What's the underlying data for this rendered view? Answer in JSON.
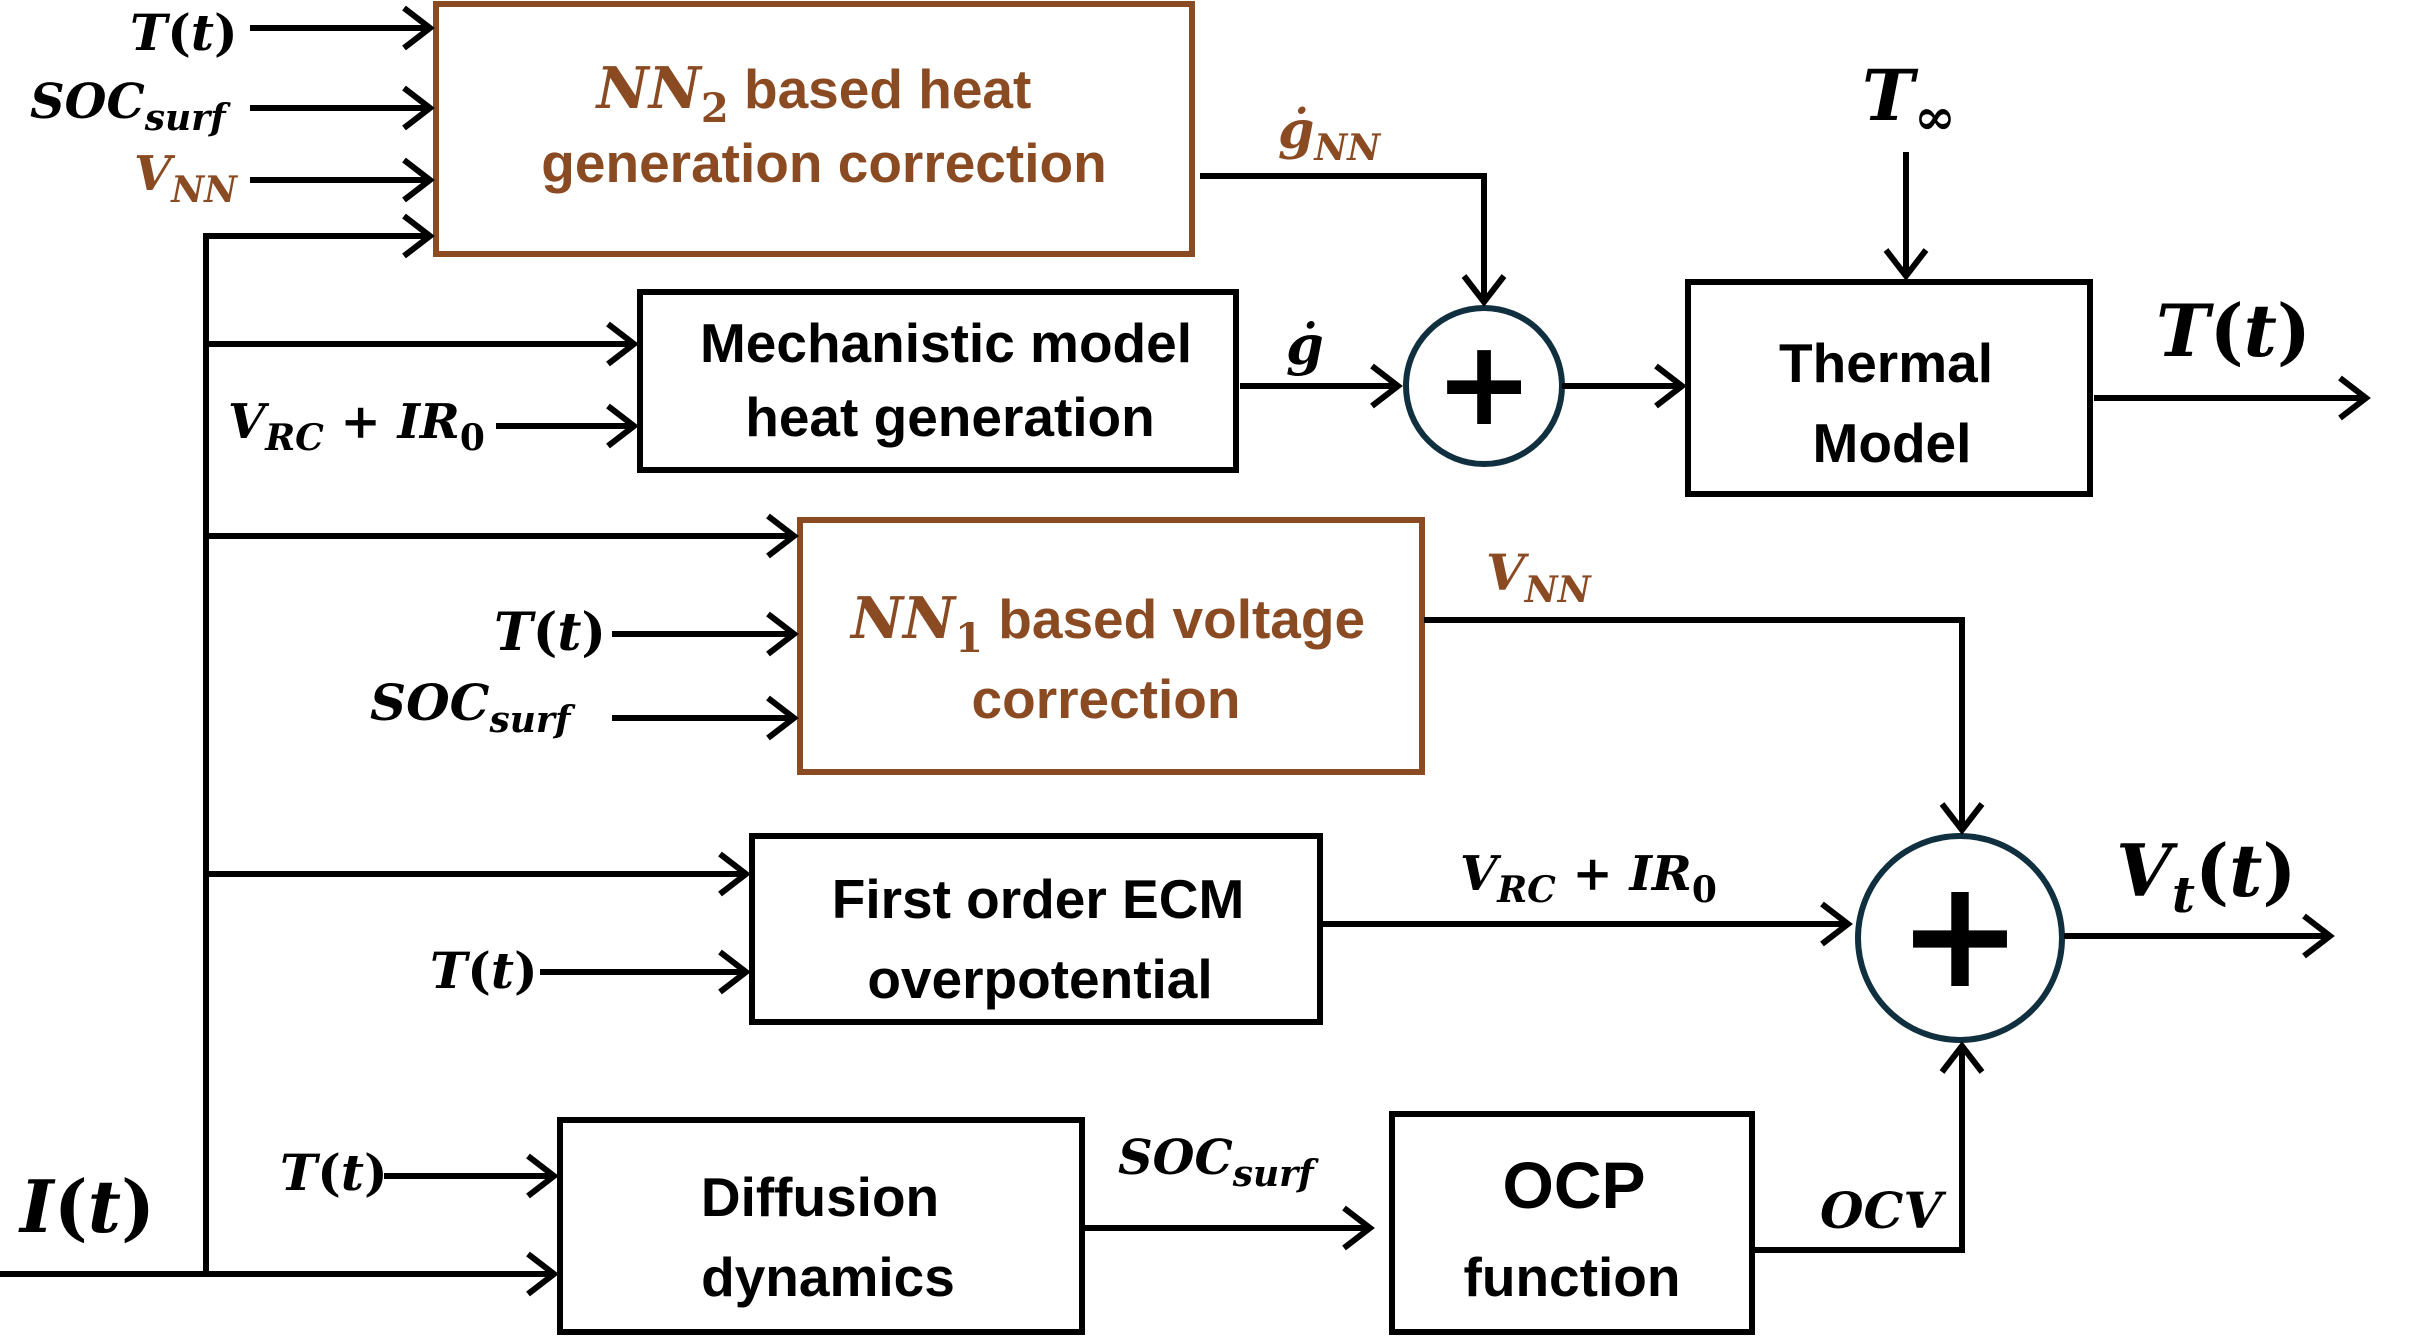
{
  "colors": {
    "black": "#000000",
    "nn_brown": "#8a4a22",
    "sum_node_stroke": "#10303f"
  },
  "blocks": {
    "nn2": {
      "line1_sym": "NN",
      "line1_sub": "2",
      "line1_rest": " based heat",
      "line2": "generation correction"
    },
    "mech": {
      "line1": "Mechanistic model",
      "line2": "heat generation"
    },
    "thermal": {
      "line1": "Thermal",
      "line2": "Model"
    },
    "nn1": {
      "line1_sym": "NN",
      "line1_sub": "1",
      "line1_rest": " based voltage",
      "line2": "correction"
    },
    "ecm": {
      "line1": "First order ECM",
      "line2": "overpotential"
    },
    "diffusion": {
      "line1": "Diffusion",
      "line2": "dynamics"
    },
    "ocp": {
      "line1": "OCP",
      "line2": "function"
    }
  },
  "sum_nodes": {
    "symbol": "+"
  },
  "signals": {
    "T_sym": "T",
    "t_arg": "t",
    "lparen": "(",
    "rparen": ")",
    "I_sym": "I",
    "SOC_sym": "SOC",
    "surf_sub": "surf",
    "V_sym": "V",
    "NN_sub": "NN",
    "RC_sub": "RC",
    "plus": " + ",
    "IR_sym": "IR",
    "zero_sub": "0",
    "g_sym": "ġ",
    "T_inf_sym": "T",
    "inf_sub": "∞",
    "Vt_sub": "t",
    "OCV": "OCV"
  }
}
